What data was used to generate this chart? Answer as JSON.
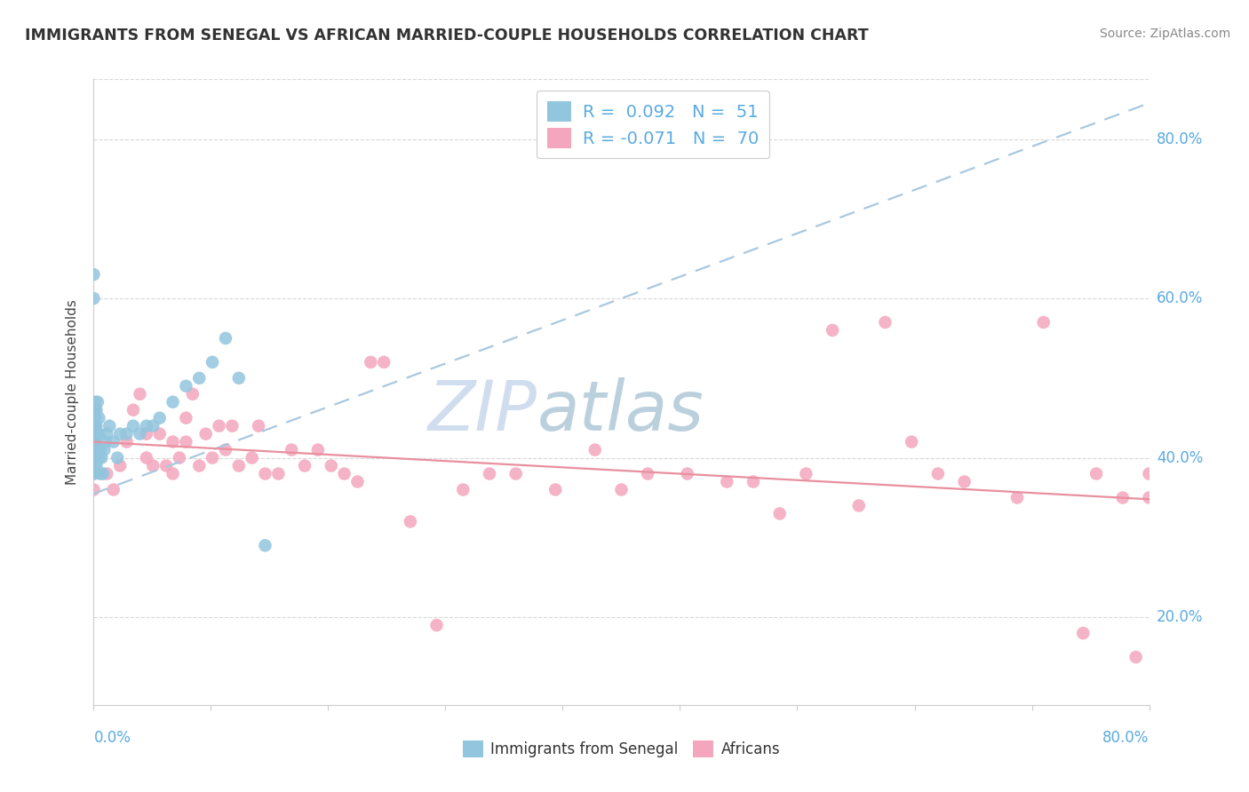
{
  "title": "IMMIGRANTS FROM SENEGAL VS AFRICAN MARRIED-COUPLE HOUSEHOLDS CORRELATION CHART",
  "source": "Source: ZipAtlas.com",
  "ylabel": "Married-couple Households",
  "xmin": 0.0,
  "xmax": 0.8,
  "ymin": 0.09,
  "ymax": 0.875,
  "ytick_labels": [
    "20.0%",
    "40.0%",
    "60.0%",
    "80.0%"
  ],
  "ytick_values": [
    0.2,
    0.4,
    0.6,
    0.8
  ],
  "blue_color": "#92c5de",
  "pink_color": "#f4a6be",
  "trendline_blue_color": "#a8c8e0",
  "trendline_pink_color": "#e8909e",
  "watermark_color": "#c8d8ec",
  "label_color": "#5aaae0",
  "senegal_x": [
    0.0,
    0.0,
    0.0,
    0.0,
    0.0,
    0.0,
    0.0,
    0.0,
    0.001,
    0.001,
    0.001,
    0.001,
    0.001,
    0.001,
    0.001,
    0.002,
    0.002,
    0.002,
    0.002,
    0.002,
    0.003,
    0.003,
    0.003,
    0.003,
    0.004,
    0.004,
    0.004,
    0.005,
    0.005,
    0.006,
    0.007,
    0.008,
    0.009,
    0.01,
    0.012,
    0.015,
    0.018,
    0.02,
    0.025,
    0.03,
    0.035,
    0.04,
    0.045,
    0.05,
    0.06,
    0.07,
    0.08,
    0.09,
    0.1,
    0.11,
    0.13
  ],
  "senegal_y": [
    0.38,
    0.4,
    0.42,
    0.44,
    0.45,
    0.46,
    0.6,
    0.63,
    0.39,
    0.41,
    0.43,
    0.44,
    0.45,
    0.46,
    0.47,
    0.39,
    0.41,
    0.42,
    0.44,
    0.46,
    0.4,
    0.41,
    0.43,
    0.47,
    0.4,
    0.43,
    0.45,
    0.38,
    0.41,
    0.4,
    0.38,
    0.41,
    0.42,
    0.43,
    0.44,
    0.42,
    0.4,
    0.43,
    0.43,
    0.44,
    0.43,
    0.44,
    0.44,
    0.45,
    0.47,
    0.49,
    0.5,
    0.52,
    0.55,
    0.5,
    0.29
  ],
  "africans_x": [
    0.0,
    0.0,
    0.0,
    0.0,
    0.0,
    0.0,
    0.01,
    0.015,
    0.02,
    0.025,
    0.03,
    0.035,
    0.04,
    0.04,
    0.045,
    0.05,
    0.055,
    0.06,
    0.06,
    0.065,
    0.07,
    0.07,
    0.075,
    0.08,
    0.085,
    0.09,
    0.095,
    0.1,
    0.105,
    0.11,
    0.12,
    0.125,
    0.13,
    0.14,
    0.15,
    0.16,
    0.17,
    0.18,
    0.19,
    0.2,
    0.21,
    0.22,
    0.24,
    0.26,
    0.28,
    0.3,
    0.32,
    0.35,
    0.38,
    0.4,
    0.42,
    0.45,
    0.48,
    0.5,
    0.52,
    0.54,
    0.56,
    0.58,
    0.6,
    0.62,
    0.64,
    0.66,
    0.7,
    0.72,
    0.75,
    0.76,
    0.78,
    0.79,
    0.8,
    0.8
  ],
  "africans_y": [
    0.36,
    0.38,
    0.4,
    0.42,
    0.44,
    0.46,
    0.38,
    0.36,
    0.39,
    0.42,
    0.46,
    0.48,
    0.4,
    0.43,
    0.39,
    0.43,
    0.39,
    0.38,
    0.42,
    0.4,
    0.42,
    0.45,
    0.48,
    0.39,
    0.43,
    0.4,
    0.44,
    0.41,
    0.44,
    0.39,
    0.4,
    0.44,
    0.38,
    0.38,
    0.41,
    0.39,
    0.41,
    0.39,
    0.38,
    0.37,
    0.52,
    0.52,
    0.32,
    0.19,
    0.36,
    0.38,
    0.38,
    0.36,
    0.41,
    0.36,
    0.38,
    0.38,
    0.37,
    0.37,
    0.33,
    0.38,
    0.56,
    0.34,
    0.57,
    0.42,
    0.38,
    0.37,
    0.35,
    0.57,
    0.18,
    0.38,
    0.35,
    0.15,
    0.35,
    0.38
  ],
  "trendline_blue_y0": 0.355,
  "trendline_blue_y1": 0.845,
  "trendline_pink_y0": 0.42,
  "trendline_pink_y1": 0.348
}
